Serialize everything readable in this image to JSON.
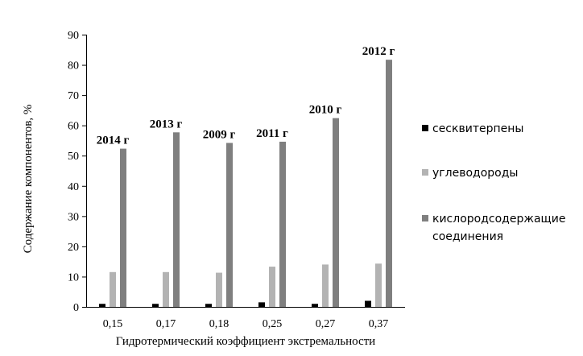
{
  "chart_data": {
    "type": "bar",
    "categories": [
      "0,15",
      "0,17",
      "0,18",
      "0,25",
      "0,27",
      "0,37"
    ],
    "series": [
      {
        "name": "сесквитерпены",
        "color": "#000000",
        "values": [
          1.0,
          1.0,
          1.0,
          1.5,
          1.0,
          2.0
        ]
      },
      {
        "name": "углеводороды",
        "color": "#b3b3b3",
        "values": [
          11.5,
          11.5,
          11.3,
          13.3,
          14.0,
          14.3
        ]
      },
      {
        "name": "кислородсодержащие соединения",
        "color": "#7f7f7f",
        "values": [
          52.3,
          57.7,
          54.2,
          54.6,
          62.4,
          81.7
        ]
      }
    ],
    "annotations": [
      "2014 г",
      "2013 г",
      "2009 г",
      "2011 г",
      "2010 г",
      "2012 г"
    ],
    "xlabel": "Гидротермический коэффициент экстремальности",
    "ylabel": "Содержание компонентов, %",
    "ylim": [
      0,
      90
    ],
    "yticks": [
      0,
      10,
      20,
      30,
      40,
      50,
      60,
      70,
      80,
      90
    ],
    "legend_position": "right",
    "grid": false
  }
}
